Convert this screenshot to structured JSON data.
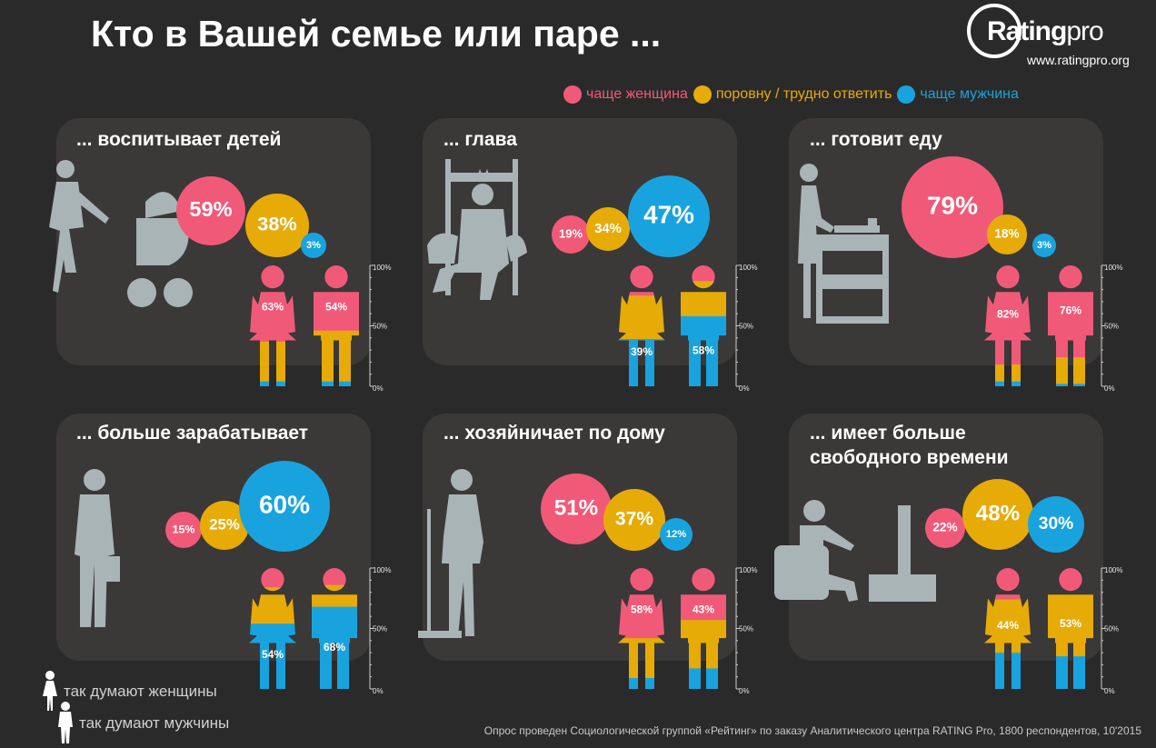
{
  "title": "Кто в Вашей семье или паре ...",
  "logo": {
    "brand": "Rating",
    "suffix": "pro",
    "url": "www.ratingpro.org"
  },
  "legend": [
    {
      "label": "чаще женщина",
      "color": "#f05a78"
    },
    {
      "label": "поровну / трудно ответить",
      "color": "#e7ab08"
    },
    {
      "label": "чаще мужчина",
      "color": "#19a3de"
    }
  ],
  "axis_labels": [
    "100%",
    "50%",
    "0%"
  ],
  "footer": {
    "women": "так думают женщины",
    "men": "так думают мужчины",
    "source": "Опрос проведен Социологической группой «Рейтинг» по заказу Аналитического центра RATING Pro, 1800 респондентов, 10'2015"
  },
  "chart_data": [
    {
      "type": "bar",
      "title": "... воспитывает детей",
      "categories": [
        "чаще женщина",
        "поровну / трудно ответить",
        "чаще мужчина"
      ],
      "total": [
        59,
        38,
        3
      ],
      "women": [
        63,
        33,
        4
      ],
      "men": [
        54,
        42,
        4
      ],
      "labels": {
        "total": [
          "59%",
          "38%",
          "3%"
        ],
        "women": "63%",
        "men": "54%"
      }
    },
    {
      "type": "bar",
      "title": "... глава",
      "categories": [
        "чаще женщина",
        "поровну / трудно ответить",
        "чаще мужчина"
      ],
      "total": [
        19,
        34,
        47
      ],
      "women": [
        25,
        36,
        39
      ],
      "men": [
        13,
        29,
        58
      ],
      "labels": {
        "total": [
          "19%",
          "34%",
          "47%"
        ],
        "women": "39%",
        "men": "58%"
      }
    },
    {
      "type": "bar",
      "title": "... готовит еду",
      "categories": [
        "чаще женщина",
        "поровну / трудно ответить",
        "чаще мужчина"
      ],
      "total": [
        79,
        18,
        3
      ],
      "women": [
        82,
        14,
        4
      ],
      "men": [
        76,
        22,
        2
      ],
      "labels": {
        "total": [
          "79%",
          "18%",
          "3%"
        ],
        "women": "82%",
        "men": "76%"
      }
    },
    {
      "type": "bar",
      "title": "... больше зарабатывает",
      "categories": [
        "чаще женщина",
        "поровну / трудно ответить",
        "чаще мужчина"
      ],
      "total": [
        15,
        25,
        60
      ],
      "women": [
        16,
        30,
        54
      ],
      "men": [
        14,
        18,
        68
      ],
      "labels": {
        "total": [
          "15%",
          "25%",
          "60%"
        ],
        "women": "54%",
        "men": "68%"
      }
    },
    {
      "type": "bar",
      "title": "... хозяйничает по дому",
      "categories": [
        "чаще женщина",
        "поровну / трудно ответить",
        "чаще мужчина"
      ],
      "total": [
        51,
        37,
        12
      ],
      "women": [
        58,
        33,
        9
      ],
      "men": [
        43,
        40,
        17
      ],
      "labels": {
        "total": [
          "51%",
          "37%",
          "12%"
        ],
        "women": "58%",
        "men": "43%"
      }
    },
    {
      "type": "bar",
      "title": "... имеет больше свободного времени",
      "categories": [
        "чаще женщина",
        "поровну / трудно ответить",
        "чаще мужчина"
      ],
      "total": [
        22,
        48,
        30
      ],
      "women": [
        26,
        44,
        30
      ],
      "men": [
        20,
        53,
        27
      ],
      "labels": {
        "total": [
          "22%",
          "48%",
          "30%"
        ],
        "women": "44%",
        "men": "53%"
      }
    }
  ]
}
